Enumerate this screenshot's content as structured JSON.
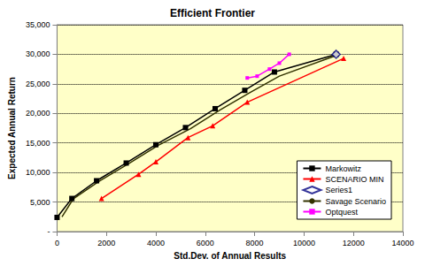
{
  "chart_data": {
    "type": "line",
    "title": "Efficient Frontier",
    "x_label": "Std.Dev. of Annual Results",
    "y_label": "Expected Annual Return",
    "xlim": [
      0,
      14000
    ],
    "xticks": [
      0,
      2000,
      4000,
      6000,
      8000,
      10000,
      12000,
      14000
    ],
    "ylim": [
      0,
      35000
    ],
    "yticks": [
      {
        "value": 0,
        "label": "-"
      },
      {
        "value": 5000,
        "label": "5,000"
      },
      {
        "value": 10000,
        "label": "10,000"
      },
      {
        "value": 15000,
        "label": "15,000"
      },
      {
        "value": 20000,
        "label": "20,000"
      },
      {
        "value": 25000,
        "label": "25,000"
      },
      {
        "value": 30000,
        "label": "30,000"
      },
      {
        "value": 35000,
        "label": "35,000"
      }
    ],
    "grid": true,
    "legend": "lower right",
    "series": [
      {
        "name": "Markowitz",
        "color": "#000000",
        "marker": "square",
        "line_style": "solid",
        "x": [
          0,
          600,
          1600,
          2800,
          4000,
          5200,
          6400,
          7600,
          8800,
          11300
        ],
        "values": [
          2400,
          5600,
          8600,
          11600,
          14700,
          17600,
          20800,
          23900,
          27000,
          30000
        ]
      },
      {
        "name": "SCENARIO MIN",
        "color": "#ff0000",
        "marker": "triangle",
        "line_style": "solid",
        "x": [
          1800,
          3300,
          4000,
          5300,
          6300,
          7700,
          11600
        ],
        "values": [
          5600,
          9700,
          11800,
          15900,
          17900,
          21900,
          29300
        ]
      },
      {
        "name": "Series1",
        "color": "#000080",
        "marker": "diamond",
        "line_style": "none",
        "x": [
          11300
        ],
        "values": [
          30000
        ]
      },
      {
        "name": "Savage Scenario",
        "color": "#333300",
        "marker": "none",
        "line_style": "solid",
        "x": [
          200,
          650,
          1700,
          2900,
          4100,
          5400,
          6600,
          7800,
          9000,
          11300
        ],
        "values": [
          2500,
          5500,
          8500,
          11500,
          14600,
          17400,
          20600,
          23500,
          26300,
          29800
        ]
      },
      {
        "name": "Optquest",
        "color": "#ff00ff",
        "marker": "square",
        "line_style": "solid",
        "x": [
          7700,
          8100,
          8600,
          9000,
          9400
        ],
        "values": [
          26000,
          26300,
          27500,
          28500,
          30000
        ]
      }
    ]
  }
}
